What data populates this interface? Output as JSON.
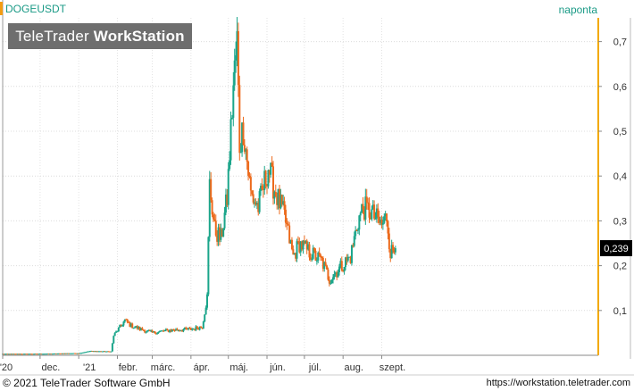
{
  "header": {
    "symbol": "DOGEUSDT",
    "interval": "naponta",
    "brand_light": "TeleTrader ",
    "brand_bold": "WorkStation"
  },
  "footer": {
    "copyright": "© 2021 TeleTrader Software GmbH",
    "url": "https://workstation.teletrader.com"
  },
  "colors": {
    "up": "#1aa58a",
    "down": "#ec6a1c",
    "axis_accent": "#f2a900",
    "last_price_box": "#000000"
  },
  "chart_data": {
    "type": "candlestick",
    "x_ticks": [
      "'20",
      "dec.",
      "'21",
      "febr.",
      "márc.",
      "ápr.",
      "máj.",
      "jún.",
      "júl.",
      "aug.",
      "szept."
    ],
    "y_ticks": [
      "0,1",
      "0,2",
      "0,3",
      "0,4",
      "0,5",
      "0,6",
      "0,7"
    ],
    "ylim": [
      0.0,
      0.75
    ],
    "last_value_label": "0,239",
    "last_value": 0.239,
    "grid": true,
    "keypoints": [
      [
        "2020-11-01",
        0.0033
      ],
      [
        "2020-11-20",
        0.0034
      ],
      [
        "2020-12-10",
        0.0037
      ],
      [
        "2020-12-25",
        0.0046
      ],
      [
        "2021-01-01",
        0.0046
      ],
      [
        "2021-01-10",
        0.0095
      ],
      [
        "2021-01-27",
        0.0085
      ],
      [
        "2021-01-29",
        0.044
      ],
      [
        "2021-02-07",
        0.078
      ],
      [
        "2021-02-12",
        0.066
      ],
      [
        "2021-02-20",
        0.058
      ],
      [
        "2021-03-01",
        0.05
      ],
      [
        "2021-03-15",
        0.056
      ],
      [
        "2021-04-01",
        0.058
      ],
      [
        "2021-04-10",
        0.064
      ],
      [
        "2021-04-14",
        0.13
      ],
      [
        "2021-04-16",
        0.38
      ],
      [
        "2021-04-20",
        0.28
      ],
      [
        "2021-04-25",
        0.26
      ],
      [
        "2021-04-30",
        0.35
      ],
      [
        "2021-05-05",
        0.6
      ],
      [
        "2021-05-08",
        0.7
      ],
      [
        "2021-05-10",
        0.47
      ],
      [
        "2021-05-13",
        0.51
      ],
      [
        "2021-05-19",
        0.36
      ],
      [
        "2021-05-25",
        0.33
      ],
      [
        "2021-06-02",
        0.42
      ],
      [
        "2021-06-07",
        0.37
      ],
      [
        "2021-06-15",
        0.31
      ],
      [
        "2021-06-22",
        0.22
      ],
      [
        "2021-06-27",
        0.25
      ],
      [
        "2021-07-05",
        0.23
      ],
      [
        "2021-07-15",
        0.21
      ],
      [
        "2021-07-21",
        0.17
      ],
      [
        "2021-07-31",
        0.2
      ],
      [
        "2021-08-07",
        0.22
      ],
      [
        "2021-08-13",
        0.3
      ],
      [
        "2021-08-17",
        0.33
      ],
      [
        "2021-08-23",
        0.32
      ],
      [
        "2021-09-01",
        0.29
      ],
      [
        "2021-09-05",
        0.31
      ],
      [
        "2021-09-08",
        0.23
      ],
      [
        "2021-09-12",
        0.239
      ]
    ]
  }
}
